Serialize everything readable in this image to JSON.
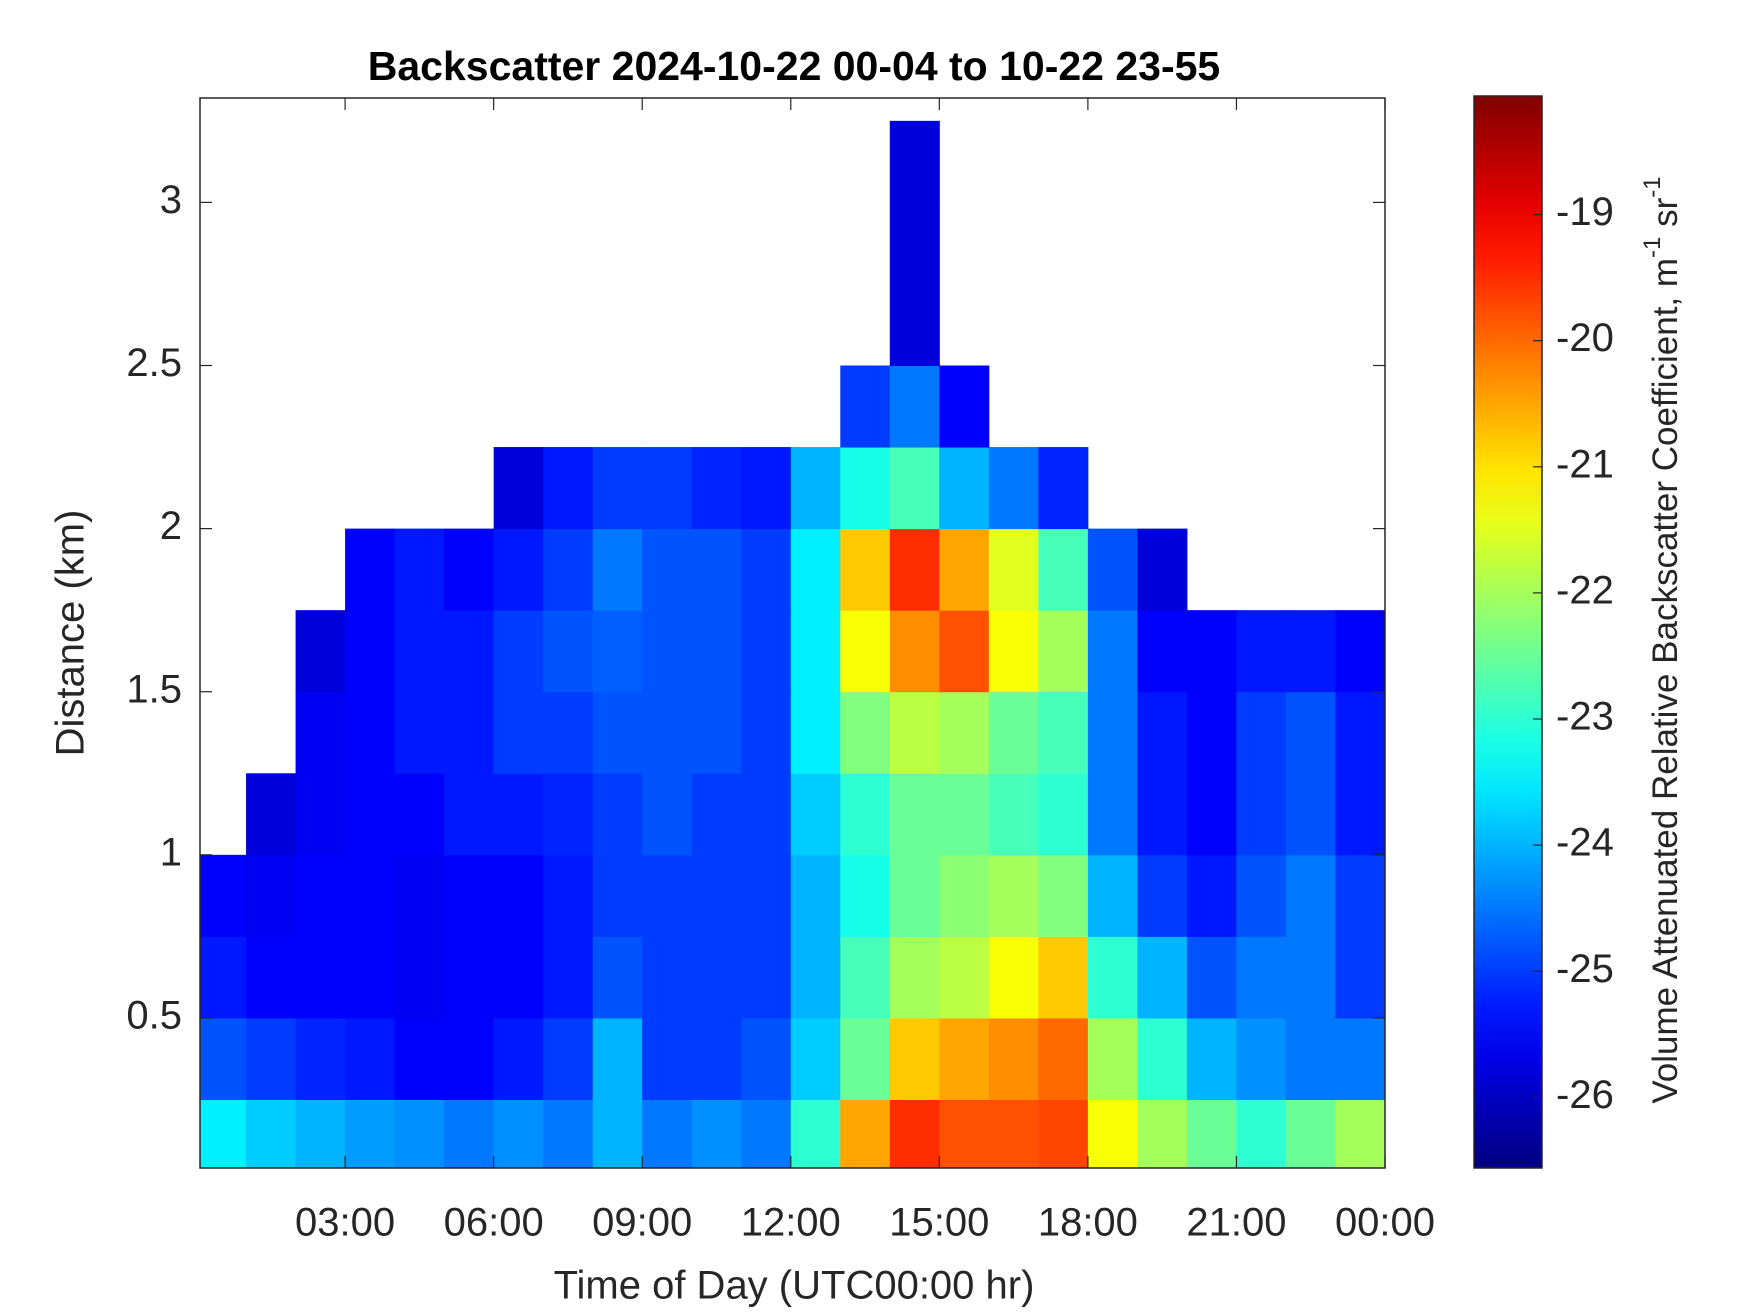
{
  "chart_data": {
    "type": "heatmap",
    "title": "Backscatter 2024-10-22 00-04 to 10-22 23-55",
    "xlabel": "Time of Day (UTC00:00 hr)",
    "ylabel": "Distance (km)",
    "colorbar_label": [
      "Volume Attenuated Relative Backscatter Coefficient, m",
      "-1",
      " sr",
      "-1"
    ],
    "colormap": "jet",
    "xlim": [
      0.07,
      24
    ],
    "ylim": [
      0.04,
      3.32
    ],
    "clim": [
      -26.56,
      -18.06
    ],
    "xticks": [
      {
        "value": 3,
        "label": "03:00"
      },
      {
        "value": 6,
        "label": "06:00"
      },
      {
        "value": 9,
        "label": "09:00"
      },
      {
        "value": 12,
        "label": "12:00"
      },
      {
        "value": 15,
        "label": "15:00"
      },
      {
        "value": 18,
        "label": "18:00"
      },
      {
        "value": 21,
        "label": "21:00"
      },
      {
        "value": 24,
        "label": "00:00"
      }
    ],
    "yticks": [
      0.5,
      1,
      1.5,
      2,
      2.5,
      3
    ],
    "cticks": [
      -26,
      -25,
      -24,
      -23,
      -22,
      -21,
      -20,
      -19
    ],
    "xbins": [
      0,
      1,
      2,
      3,
      4,
      5,
      6,
      7,
      8,
      9,
      10,
      11,
      12,
      13,
      14,
      15,
      16,
      17,
      18,
      19,
      20,
      21,
      22,
      23,
      24
    ],
    "ybins": [
      0,
      0.25,
      0.5,
      0.75,
      1,
      1.25,
      1.5,
      1.75,
      2,
      2.25,
      2.5,
      2.75,
      3,
      3.25
    ],
    "values": [
      [
        -23.5,
        -23.8,
        -24,
        -24.2,
        -24.3,
        -24.5,
        -24.3,
        -24.5,
        -24,
        -24.5,
        -24.3,
        -24.5,
        -23,
        -20.5,
        -19.5,
        -19.8,
        -19.8,
        -19.7,
        -21.3,
        -22,
        -22.5,
        -23,
        -22.5,
        -22
      ],
      [
        -24.8,
        -25,
        -25.2,
        -25.3,
        -25.5,
        -25.5,
        -25.3,
        -25,
        -24,
        -25,
        -25,
        -24.8,
        -23.8,
        -22.5,
        -20.8,
        -20.5,
        -20.3,
        -20,
        -22,
        -23,
        -24,
        -24.3,
        -24.5,
        -24.5
      ],
      [
        -25.3,
        -25.5,
        -25.5,
        -25.5,
        -25.6,
        -25.5,
        -25.5,
        -25.3,
        -24.8,
        -25,
        -25,
        -25,
        -24,
        -22.8,
        -22,
        -21.8,
        -21.3,
        -20.8,
        -23,
        -24,
        -24.8,
        -24.5,
        -24.5,
        -25
      ],
      [
        -25.5,
        -25.6,
        -25.5,
        -25.5,
        -25.6,
        -25.5,
        -25.5,
        -25.3,
        -25,
        -25,
        -25,
        -25,
        -24,
        -23.2,
        -22.5,
        -22.2,
        -22,
        -22.3,
        -24,
        -25,
        -25.3,
        -24.8,
        -24.5,
        -25
      ],
      [
        null,
        -25.8,
        -25.6,
        -25.5,
        -25.5,
        -25.3,
        -25.3,
        -25.2,
        -25,
        -24.8,
        -25,
        -25,
        -23.8,
        -23,
        -22.5,
        -22.5,
        -22.8,
        -23,
        -24.5,
        -25.3,
        -25.5,
        -25,
        -24.8,
        -25.3
      ],
      [
        null,
        null,
        -25.6,
        -25.5,
        -25.3,
        -25.3,
        -25,
        -25,
        -24.8,
        -24.8,
        -24.8,
        -25,
        -23.5,
        -22.3,
        -21.8,
        -22,
        -22.5,
        -22.8,
        -24.5,
        -25.3,
        -25.5,
        -25,
        -24.8,
        -25.3
      ],
      [
        null,
        null,
        -25.8,
        -25.5,
        -25.3,
        -25.3,
        -25,
        -24.8,
        -24.7,
        -24.8,
        -24.8,
        -25,
        -23.5,
        -21.3,
        -20.3,
        -19.8,
        -21.3,
        -22,
        -24.5,
        -25.5,
        -25.5,
        -25.3,
        -25.3,
        -25.5
      ],
      [
        null,
        null,
        null,
        -25.5,
        -25.3,
        -25.5,
        -25.3,
        -25,
        -24.5,
        -24.8,
        -24.8,
        -25,
        -23.5,
        -20.8,
        -19.5,
        -20.5,
        -21.5,
        -22.8,
        -24.8,
        -25.8,
        null,
        null,
        null,
        null
      ],
      [
        null,
        null,
        null,
        null,
        null,
        null,
        -25.8,
        -25.3,
        -25,
        -25,
        -25.2,
        -25.3,
        -24,
        -23.2,
        -22.8,
        -24,
        -24.5,
        -25.2,
        null,
        null,
        null,
        null,
        null,
        null
      ],
      [
        null,
        null,
        null,
        null,
        null,
        null,
        null,
        null,
        null,
        null,
        null,
        null,
        null,
        -25,
        -24.5,
        -25.5,
        null,
        null,
        null,
        null,
        null,
        null,
        null,
        null
      ],
      [
        null,
        null,
        null,
        null,
        null,
        null,
        null,
        null,
        null,
        null,
        null,
        null,
        null,
        null,
        -25.8,
        null,
        null,
        null,
        null,
        null,
        null,
        null,
        null,
        null
      ],
      [
        null,
        null,
        null,
        null,
        null,
        null,
        null,
        null,
        null,
        null,
        null,
        null,
        null,
        null,
        -25.8,
        null,
        null,
        null,
        null,
        null,
        null,
        null,
        null,
        null
      ],
      [
        null,
        null,
        null,
        null,
        null,
        null,
        null,
        null,
        null,
        null,
        null,
        null,
        null,
        null,
        -25.8,
        null,
        null,
        null,
        null,
        null,
        null,
        null,
        null,
        null
      ]
    ]
  }
}
